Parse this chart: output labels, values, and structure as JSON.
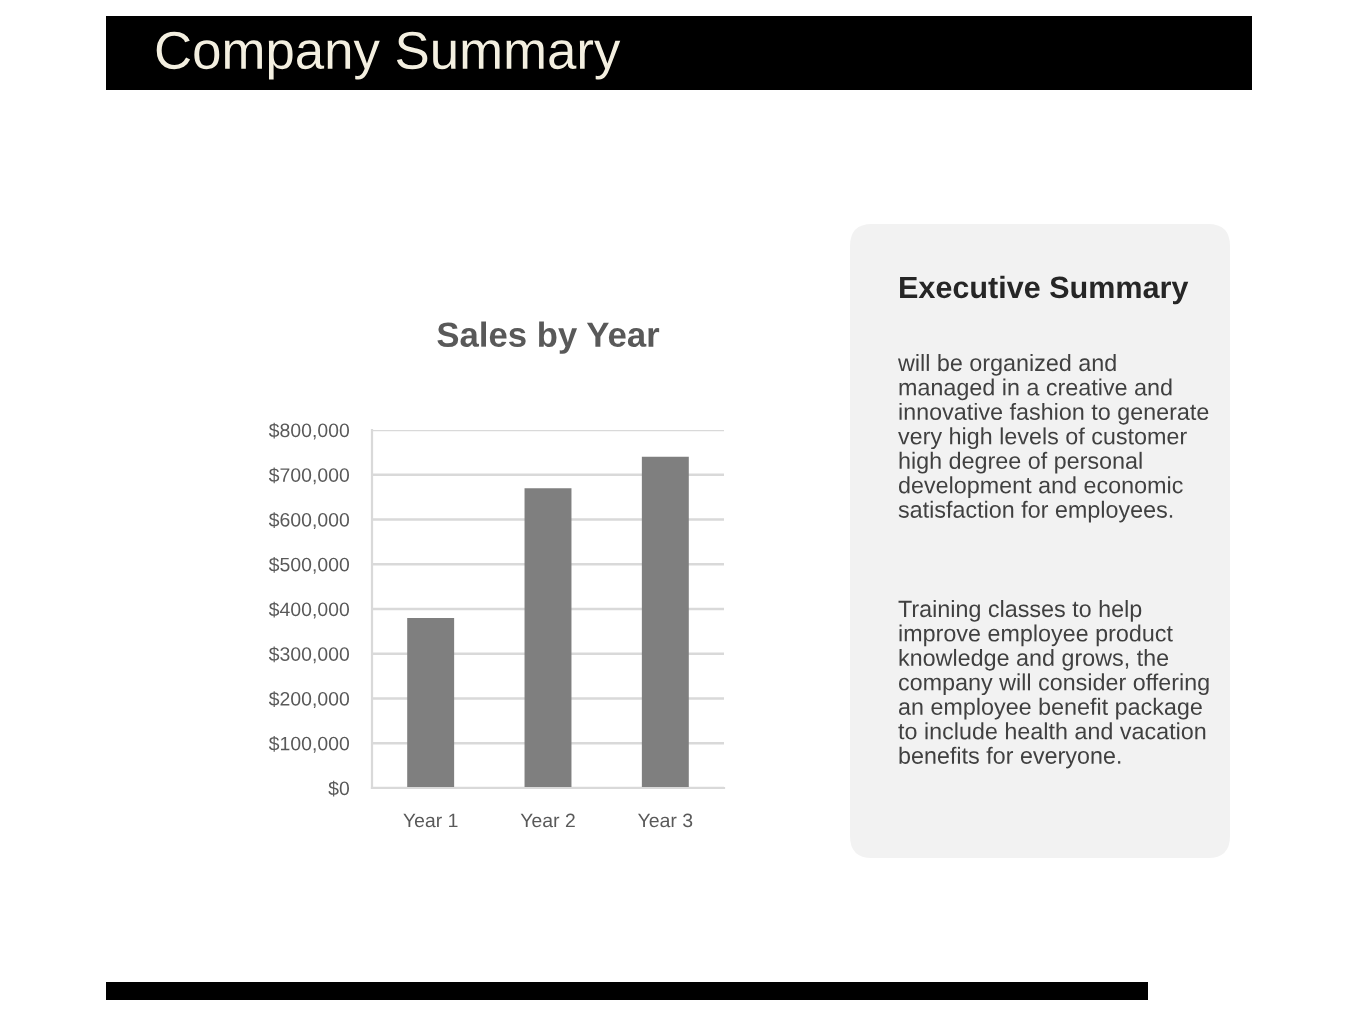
{
  "chart_data": [
    {
      "type": "other",
      "title": "Company Summary"
    },
    {
      "type": "bar",
      "title": "Sales by Year",
      "categories": [
        "Year 1",
        "Year 2",
        "Year 3"
      ],
      "values": [
        380000,
        670000,
        740000
      ],
      "color": "#7f7f7f",
      "ylim": [
        0,
        800000
      ],
      "yticks": [
        {
          "value": 0,
          "label": "$0"
        },
        {
          "value": 100000,
          "label": "$100,000"
        },
        {
          "value": 200000,
          "label": "$200,000"
        },
        {
          "value": 300000,
          "label": "$300,000"
        },
        {
          "value": 400000,
          "label": "$400,000"
        },
        {
          "value": 500000,
          "label": "$500,000"
        },
        {
          "value": 600000,
          "label": "$600,000"
        },
        {
          "value": 700000,
          "label": "$700,000"
        },
        {
          "value": 800000,
          "label": "$800,000"
        }
      ],
      "grid": "y"
    },
    {
      "type": "other",
      "title": "Executive Summary",
      "annotations": [
        "will be organized and managed in a creative and innovative fashion to generate very high levels of customer high degree of personal development and economic satisfaction for employees.",
        "Training classes to help improve employee product knowledge and grows, the company will consider offering an employee benefit package to include health and vacation benefits for everyone."
      ]
    }
  ]
}
